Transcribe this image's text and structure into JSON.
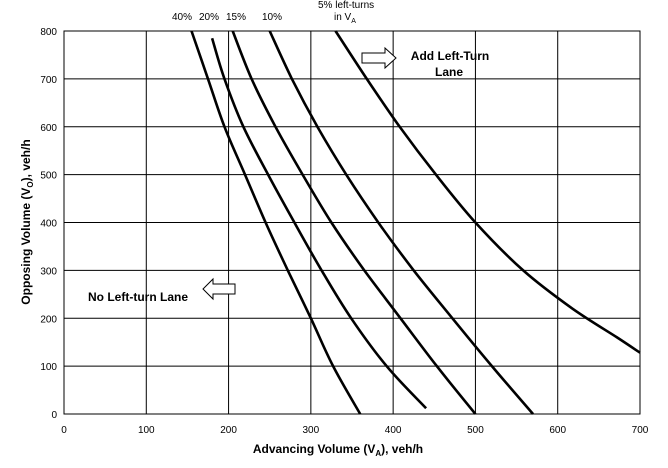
{
  "chart_data": {
    "type": "line",
    "xlabel": "Advancing Volume (V_A), veh/h",
    "ylabel": "Opposing Volume (V_O), veh/h",
    "xlim": [
      0,
      700
    ],
    "ylim": [
      0,
      800
    ],
    "xticks": [
      "0",
      "100",
      "200",
      "300",
      "400",
      "500",
      "600",
      "700"
    ],
    "yticks": [
      "0",
      "100",
      "200",
      "300",
      "400",
      "500",
      "600",
      "700",
      "800"
    ],
    "grid": true,
    "series": [
      {
        "name": "40%",
        "points": [
          [
            155,
            800
          ],
          [
            175,
            700
          ],
          [
            195,
            600
          ],
          [
            220,
            500
          ],
          [
            245,
            400
          ],
          [
            272,
            300
          ],
          [
            300,
            200
          ],
          [
            327,
            100
          ],
          [
            360,
            0
          ]
        ]
      },
      {
        "name": "20%",
        "points": [
          [
            180,
            785
          ],
          [
            195,
            700
          ],
          [
            218,
            600
          ],
          [
            248,
            500
          ],
          [
            280,
            400
          ],
          [
            313,
            300
          ],
          [
            349,
            200
          ],
          [
            392,
            100
          ],
          [
            440,
            12
          ]
        ]
      },
      {
        "name": "15%",
        "points": [
          [
            205,
            800
          ],
          [
            228,
            700
          ],
          [
            257,
            600
          ],
          [
            290,
            500
          ],
          [
            325,
            400
          ],
          [
            365,
            300
          ],
          [
            409,
            200
          ],
          [
            453,
            100
          ],
          [
            500,
            0
          ]
        ]
      },
      {
        "name": "10%",
        "points": [
          [
            250,
            800
          ],
          [
            277,
            700
          ],
          [
            308,
            600
          ],
          [
            343,
            500
          ],
          [
            382,
            400
          ],
          [
            425,
            300
          ],
          [
            472,
            200
          ],
          [
            520,
            100
          ],
          [
            570,
            0
          ]
        ]
      },
      {
        "name": "5% left-turns in V_A",
        "points": [
          [
            330,
            800
          ],
          [
            368,
            700
          ],
          [
            408,
            600
          ],
          [
            452,
            500
          ],
          [
            500,
            400
          ],
          [
            558,
            300
          ],
          [
            618,
            220
          ],
          [
            672,
            160
          ],
          [
            700,
            128
          ]
        ]
      }
    ],
    "annotations": {
      "add_lane_line1": "Add Left-Turn",
      "add_lane_line2": "Lane",
      "no_lane": "No Left-turn Lane"
    }
  }
}
